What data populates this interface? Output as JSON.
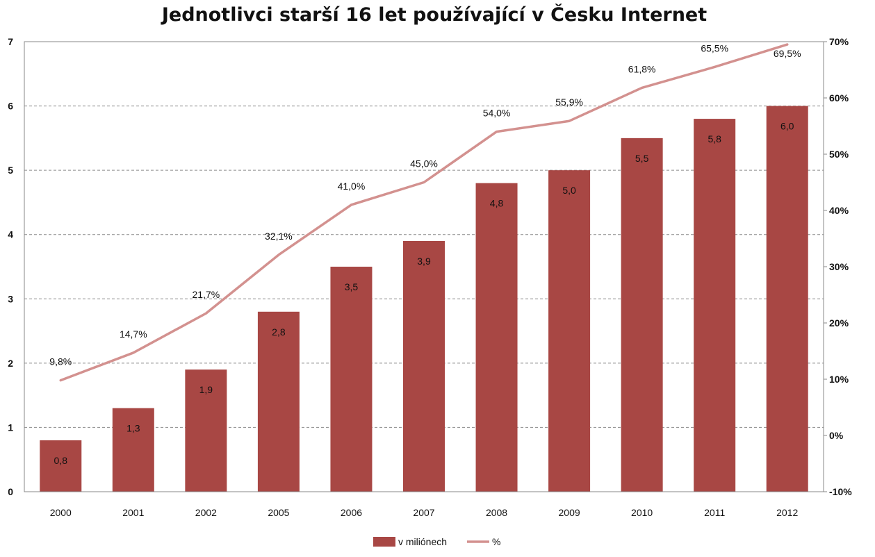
{
  "chart_data": {
    "type": "bar",
    "title": "Jednotlivci starší 16 let používající v Česku Internet",
    "categories": [
      "2000",
      "2001",
      "2002",
      "2005",
      "2006",
      "2007",
      "2008",
      "2009",
      "2010",
      "2011",
      "2012"
    ],
    "series": [
      {
        "name": "v miliónech",
        "type": "bar",
        "axis": "left",
        "color": "#a84744",
        "values": [
          0.8,
          1.3,
          1.9,
          2.8,
          3.5,
          3.9,
          4.8,
          5.0,
          5.5,
          5.8,
          6.0
        ],
        "labels": [
          "0,8",
          "1,3",
          "1,9",
          "2,8",
          "3,5",
          "3,9",
          "4,8",
          "5,0",
          "5,5",
          "5,8",
          "6,0"
        ]
      },
      {
        "name": "%",
        "type": "line",
        "axis": "right",
        "color": "#d3918f",
        "values": [
          9.8,
          14.7,
          21.7,
          32.1,
          41.0,
          45.0,
          54.0,
          55.9,
          61.8,
          65.5,
          69.5
        ],
        "labels": [
          "9,8%",
          "14,7%",
          "21,7%",
          "32,1%",
          "41,0%",
          "45,0%",
          "54,0%",
          "55,9%",
          "61,8%",
          "65,5%",
          "69,5%"
        ]
      }
    ],
    "ylim_left": [
      0,
      7
    ],
    "yticks_left": [
      "0",
      "1",
      "2",
      "3",
      "4",
      "5",
      "6",
      "7"
    ],
    "ylim_right": [
      -10,
      70
    ],
    "yticks_right": [
      "-10%",
      "0%",
      "10%",
      "20%",
      "30%",
      "40%",
      "50%",
      "60%",
      "70%"
    ],
    "grid": "horizontal dashed",
    "legend_position": "bottom"
  }
}
